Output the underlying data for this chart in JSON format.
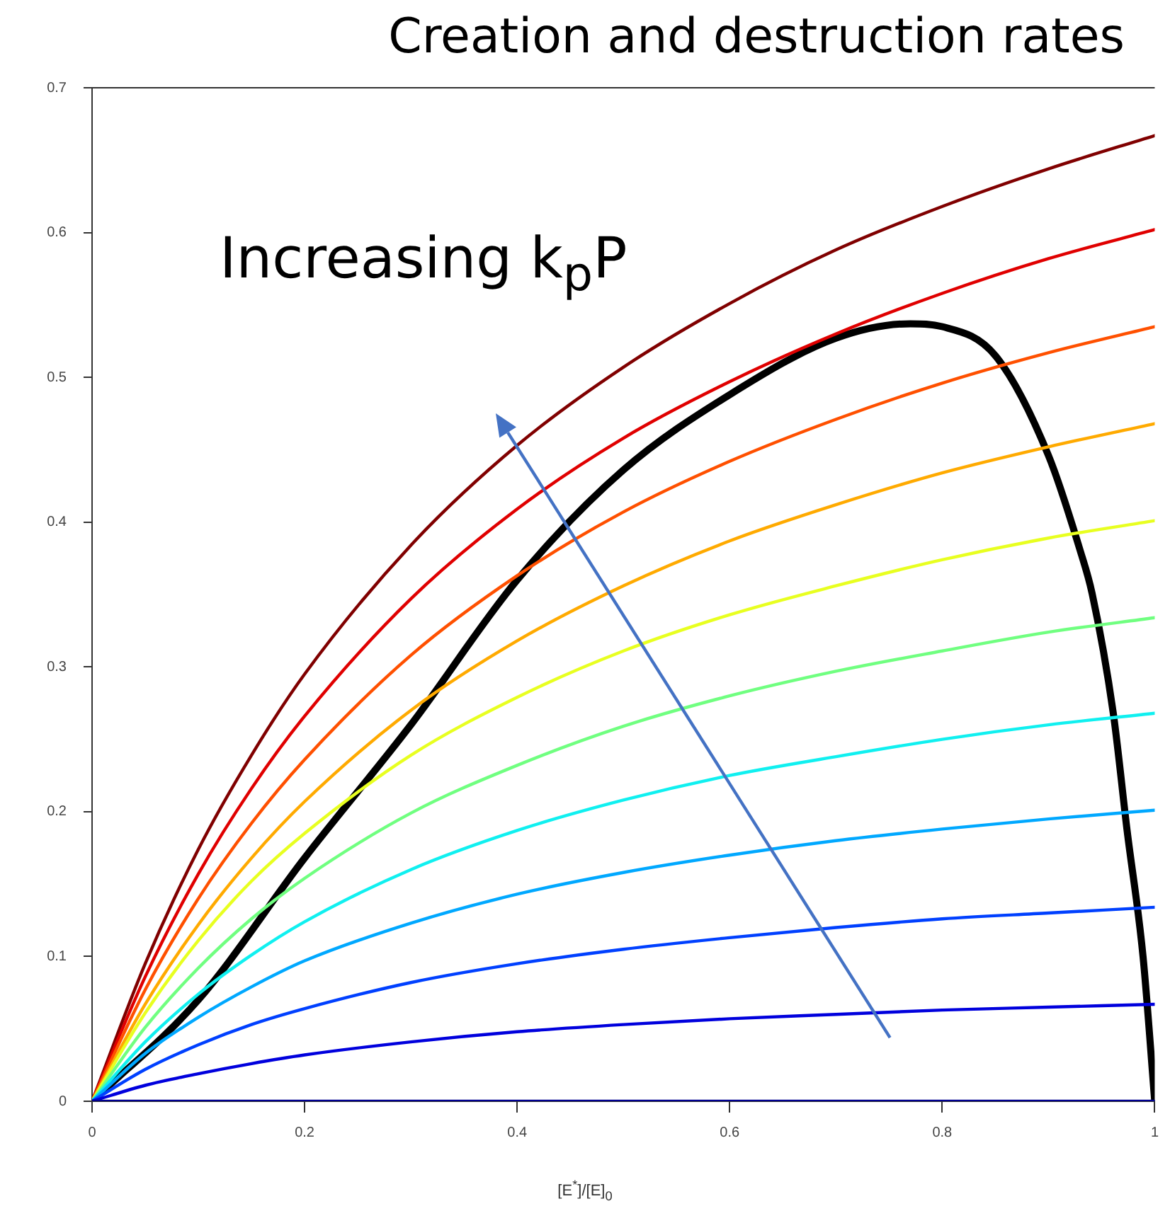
{
  "chart_data": {
    "type": "line",
    "title": "Creation and destruction rates",
    "xlabel": "[E$^{*}$]/[E]$_{0}$",
    "annotations": [
      "Increasing k$_{p}$P"
    ],
    "x": [
      0,
      0.05,
      0.1,
      0.15,
      0.2,
      0.3,
      0.4,
      0.5,
      0.6,
      0.7,
      0.8,
      0.9,
      1
    ],
    "xlim": [
      0,
      1
    ],
    "xticks": [
      0,
      0.2,
      0.4,
      0.6,
      0.8,
      1
    ],
    "ylim": [
      0,
      0.7
    ],
    "yticks": [
      0,
      0.1,
      0.2,
      0.3,
      0.4,
      0.5,
      0.6,
      0.7
    ],
    "grid": false,
    "legend": false,
    "marker": "none",
    "line_style": "solid",
    "series": [
      {
        "color": "#000090",
        "values": [
          0,
          0,
          0,
          0,
          0,
          0,
          0,
          0,
          0,
          0,
          0,
          0,
          0
        ]
      },
      {
        "color": "#0000dd",
        "values": [
          0,
          0.011,
          0.019,
          0.026,
          0.032,
          0.041,
          0.048,
          0.053,
          0.057,
          0.06,
          0.063,
          0.065,
          0.067
        ]
      },
      {
        "color": "#0040ff",
        "values": [
          0,
          0.022,
          0.039,
          0.053,
          0.064,
          0.082,
          0.095,
          0.105,
          0.113,
          0.12,
          0.126,
          0.13,
          0.134
        ]
      },
      {
        "color": "#00a8ff",
        "values": [
          0,
          0.033,
          0.058,
          0.079,
          0.097,
          0.123,
          0.143,
          0.158,
          0.17,
          0.18,
          0.188,
          0.195,
          0.201
        ]
      },
      {
        "color": "#10f0f0",
        "values": [
          0,
          0.041,
          0.074,
          0.101,
          0.124,
          0.16,
          0.187,
          0.208,
          0.225,
          0.238,
          0.25,
          0.26,
          0.268
        ]
      },
      {
        "color": "#70ff80",
        "values": [
          0,
          0.051,
          0.092,
          0.126,
          0.154,
          0.199,
          0.232,
          0.259,
          0.28,
          0.297,
          0.311,
          0.324,
          0.334
        ]
      },
      {
        "color": "#e8ff20",
        "values": [
          0,
          0.061,
          0.111,
          0.152,
          0.185,
          0.239,
          0.279,
          0.311,
          0.336,
          0.356,
          0.374,
          0.389,
          0.401
        ]
      },
      {
        "color": "#ffaa00",
        "values": [
          0,
          0.067,
          0.122,
          0.168,
          0.207,
          0.27,
          0.318,
          0.356,
          0.387,
          0.412,
          0.434,
          0.452,
          0.468
        ]
      },
      {
        "color": "#ff5000",
        "values": [
          0,
          0.077,
          0.14,
          0.192,
          0.236,
          0.308,
          0.363,
          0.407,
          0.442,
          0.471,
          0.496,
          0.517,
          0.535
        ]
      },
      {
        "color": "#e00000",
        "values": [
          0,
          0.086,
          0.157,
          0.216,
          0.266,
          0.347,
          0.409,
          0.458,
          0.497,
          0.53,
          0.558,
          0.582,
          0.602
        ]
      },
      {
        "color": "#800000",
        "values": [
          0,
          0.095,
          0.174,
          0.239,
          0.295,
          0.384,
          0.453,
          0.507,
          0.551,
          0.588,
          0.618,
          0.644,
          0.667
        ]
      },
      {
        "color": "#000000",
        "x": [
          0,
          0.1,
          0.2,
          0.3,
          0.4,
          0.5,
          0.6,
          0.7,
          0.77,
          0.8,
          0.85,
          0.9,
          0.93,
          0.941,
          0.961,
          0.974,
          0.989,
          1
        ],
        "values": [
          0,
          0.07,
          0.168,
          0.26,
          0.36,
          0.436,
          0.488,
          0.527,
          0.537,
          0.535,
          0.515,
          0.446,
          0.38,
          0.351,
          0.268,
          0.187,
          0.1,
          0
        ]
      }
    ]
  }
}
